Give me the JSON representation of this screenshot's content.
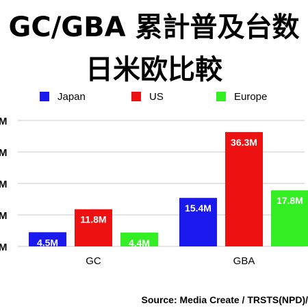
{
  "chart_data": {
    "type": "bar",
    "title": "GC/GBA 累計普及台数",
    "subtitle": "日米欧比較",
    "categories": [
      "GC",
      "GBA"
    ],
    "series": [
      {
        "name": "Japan",
        "color": "#1a1aee",
        "values": [
          4.5,
          15.4
        ],
        "labels": [
          "4.5M",
          "15.4M"
        ]
      },
      {
        "name": "US",
        "color": "#ee1111",
        "values": [
          11.8,
          36.3
        ],
        "labels": [
          "11.8M",
          "36.3M"
        ]
      },
      {
        "name": "Europe",
        "color": "#33ee22",
        "values": [
          4.4,
          17.8
        ],
        "labels": [
          "4.4M",
          "17.8M"
        ]
      }
    ],
    "y_ticks": [
      "M",
      "M",
      "M",
      "M",
      "M"
    ],
    "ylim": [
      0,
      40
    ],
    "grid": true,
    "legend_position": "top",
    "source": "Source: Media Create / TRSTS(NPD)/"
  }
}
